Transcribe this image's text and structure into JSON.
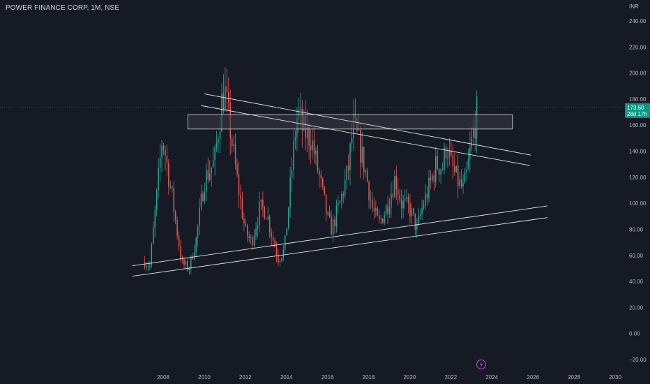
{
  "header": {
    "title": "POWER FINANCE CORP, 1M, NSE"
  },
  "price_badge": {
    "price": "173.60",
    "countdown": "28d 17h"
  },
  "colors": {
    "background": "#161a25",
    "up": "#26a69a",
    "down": "#ef5350",
    "grid": "#1f2330",
    "axis_text": "#b2b5be",
    "badge": "#089981",
    "trendline": "#e8e8e8",
    "zone_fill": "#3a3d47",
    "zone_stroke": "#d8d8d8",
    "price_line": "#26a69a",
    "footer_icon": "#ab47bc"
  },
  "footer": {
    "icon": "lightning-bolt-icon"
  },
  "chart_data": {
    "type": "candlestick",
    "title": "POWER FINANCE CORP, 1M, NSE",
    "y_unit": "INR",
    "ylim": [
      -20,
      240
    ],
    "y_ticks": [
      "240.00",
      "220.00",
      "200.00",
      "180.00",
      "160.00",
      "140.00",
      "120.00",
      "100.00",
      "80.00",
      "60.00",
      "40.00",
      "20.00",
      "0.00",
      "−20.00"
    ],
    "y_tick_values": [
      240,
      220,
      200,
      180,
      160,
      140,
      120,
      100,
      80,
      60,
      40,
      20,
      0,
      -20
    ],
    "x_ticks": [
      "2008",
      "2010",
      "2012",
      "2014",
      "2016",
      "2018",
      "2020",
      "2022",
      "2024",
      "2026",
      "2028",
      "2030"
    ],
    "x_tick_values": [
      2008,
      2010,
      2012,
      2014,
      2016,
      2018,
      2020,
      2022,
      2024,
      2026,
      2028,
      2030
    ],
    "xlim": [
      2006.3,
      2030.2
    ],
    "last_price": 173.6,
    "grid": false,
    "anchors": [
      [
        2007.1,
        55
      ],
      [
        2007.35,
        52
      ],
      [
        2007.7,
        108
      ],
      [
        2007.95,
        150
      ],
      [
        2008.1,
        138
      ],
      [
        2008.5,
        98
      ],
      [
        2008.9,
        54
      ],
      [
        2009.25,
        50
      ],
      [
        2009.6,
        72
      ],
      [
        2010.0,
        118
      ],
      [
        2010.5,
        132
      ],
      [
        2010.85,
        178
      ],
      [
        2011.0,
        186
      ],
      [
        2011.3,
        152
      ],
      [
        2011.6,
        118
      ],
      [
        2012.0,
        78
      ],
      [
        2012.3,
        70
      ],
      [
        2012.7,
        96
      ],
      [
        2013.0,
        95
      ],
      [
        2013.3,
        75
      ],
      [
        2013.6,
        58
      ],
      [
        2013.9,
        64
      ],
      [
        2014.1,
        98
      ],
      [
        2014.4,
        150
      ],
      [
        2014.55,
        170
      ],
      [
        2014.8,
        156
      ],
      [
        2015.2,
        150
      ],
      [
        2015.6,
        120
      ],
      [
        2016.0,
        88
      ],
      [
        2016.2,
        80
      ],
      [
        2016.6,
        100
      ],
      [
        2017.0,
        125
      ],
      [
        2017.25,
        160
      ],
      [
        2017.45,
        150
      ],
      [
        2017.8,
        128
      ],
      [
        2018.2,
        95
      ],
      [
        2018.5,
        84
      ],
      [
        2018.9,
        98
      ],
      [
        2019.3,
        120
      ],
      [
        2019.6,
        100
      ],
      [
        2020.0,
        96
      ],
      [
        2020.35,
        80
      ],
      [
        2020.6,
        96
      ],
      [
        2021.0,
        115
      ],
      [
        2021.3,
        130
      ],
      [
        2021.6,
        128
      ],
      [
        2021.8,
        146
      ],
      [
        2022.0,
        130
      ],
      [
        2022.3,
        118
      ],
      [
        2022.6,
        110
      ],
      [
        2022.75,
        120
      ],
      [
        2022.95,
        140
      ],
      [
        2023.1,
        155
      ],
      [
        2023.3,
        172
      ]
    ],
    "annotations": {
      "resistance_zone": {
        "x0": 2009.2,
        "x1": 2025.0,
        "y0": 157,
        "y1": 168
      },
      "descending_lines": [
        {
          "x0": 2010.0,
          "y0": 184,
          "x1": 2025.9,
          "y1": 137
        },
        {
          "x0": 2009.85,
          "y0": 175,
          "x1": 2025.85,
          "y1": 129
        }
      ],
      "ascending_lines": [
        {
          "x0": 2006.5,
          "y0": 52,
          "x1": 2026.7,
          "y1": 98
        },
        {
          "x0": 2006.5,
          "y0": 44,
          "x1": 2026.7,
          "y1": 89
        }
      ]
    }
  }
}
